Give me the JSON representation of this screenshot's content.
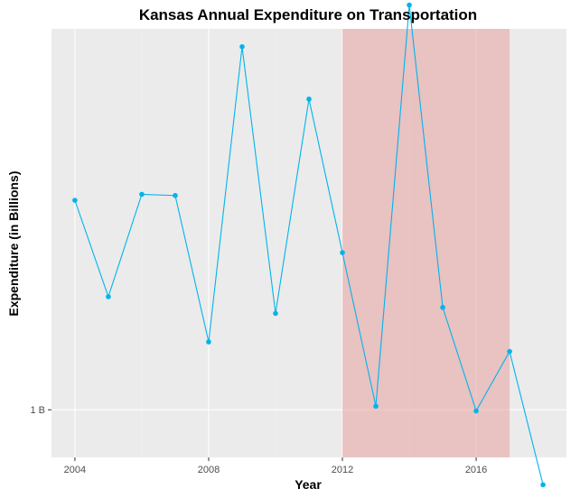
{
  "chart_data": {
    "type": "line",
    "title": "Kansas Annual Expenditure on Transportation",
    "xlabel": "Year",
    "ylabel": "Expenditure (in Billions)",
    "x_ticks": [
      2004,
      2008,
      2012,
      2016
    ],
    "x_tick_labels": [
      "2004",
      "2008",
      "2012",
      "2016"
    ],
    "xlim": [
      2003.3,
      2018.7
    ],
    "y_ticks": [
      1.0
    ],
    "y_tick_labels": [
      "1 B"
    ],
    "ylim": [
      0.96,
      1.32
    ],
    "grid": true,
    "legend": "none",
    "series": [
      {
        "color": "#00b4eb",
        "x": [
          2004,
          2005,
          2006,
          2007,
          2008,
          2009,
          2010,
          2011,
          2012,
          2013,
          2014,
          2015,
          2016,
          2017,
          2018
        ],
        "y": [
          1.176,
          1.095,
          1.181,
          1.18,
          1.057,
          1.305,
          1.081,
          1.261,
          1.132,
          1.003,
          1.34,
          1.086,
          0.999,
          1.049,
          0.937
        ]
      }
    ],
    "highlight": {
      "x_start": 2012,
      "x_end": 2017,
      "color": "#e8a0a0"
    }
  }
}
